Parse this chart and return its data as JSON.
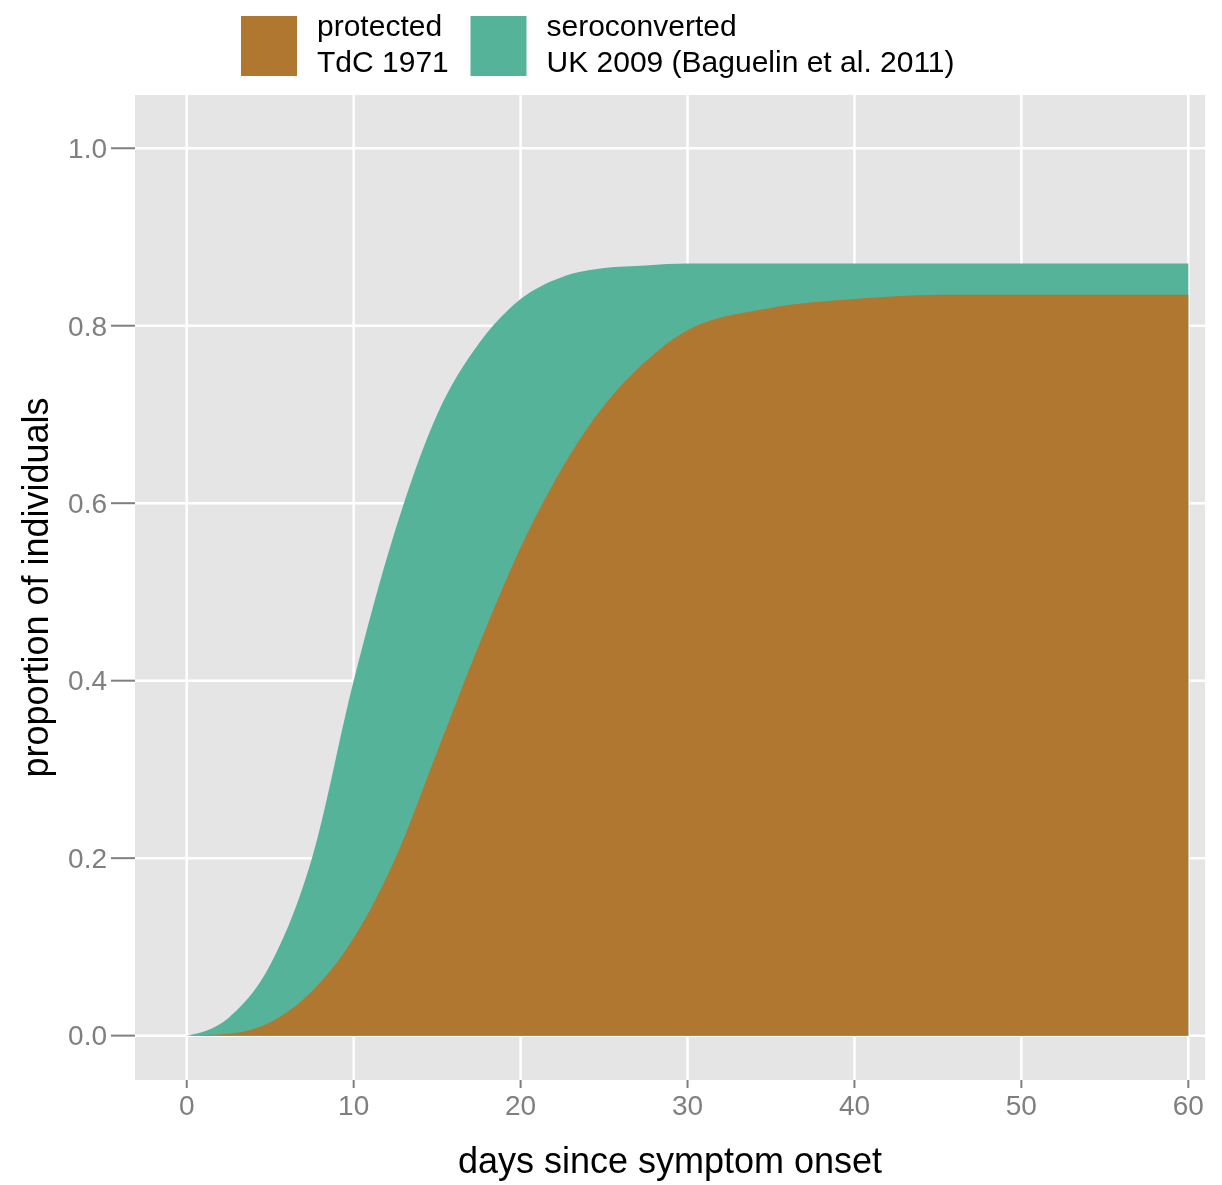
{
  "chart_data": {
    "type": "area",
    "xlabel": "days since symptom onset",
    "ylabel": "proportion of individuals",
    "x": [
      0,
      2.5,
      5,
      7.5,
      10,
      12.5,
      15,
      17.5,
      20,
      22.5,
      25,
      27.5,
      30,
      35,
      40,
      45,
      50,
      55,
      60
    ],
    "series": [
      {
        "name": "protected\nTdC 1971",
        "color": "#b07731",
        "values": [
          0,
          0.002,
          0.015,
          0.05,
          0.11,
          0.2,
          0.32,
          0.44,
          0.55,
          0.64,
          0.71,
          0.76,
          0.795,
          0.82,
          0.83,
          0.835,
          0.835,
          0.835,
          0.835
        ]
      },
      {
        "name": "seroconverted\nUK 2009 (Baguelin et al. 2011)",
        "color": "#55b399",
        "values": [
          0,
          0.02,
          0.08,
          0.2,
          0.4,
          0.57,
          0.7,
          0.78,
          0.83,
          0.855,
          0.865,
          0.868,
          0.87,
          0.87,
          0.87,
          0.87,
          0.87,
          0.87,
          0.87
        ]
      }
    ],
    "xlim": [
      -3.1,
      61
    ],
    "xticks": [
      0,
      10,
      20,
      30,
      40,
      50,
      60
    ],
    "ylim": [
      -0.05,
      1.06
    ],
    "yticks": [
      {
        "value": 0,
        "label": "0.0"
      },
      {
        "value": 0.2,
        "label": "0.2"
      },
      {
        "value": 0.4,
        "label": "0.4"
      },
      {
        "value": 0.6,
        "label": "0.6"
      },
      {
        "value": 0.8,
        "label": "0.8"
      },
      {
        "value": 1,
        "label": "1.0"
      }
    ],
    "grid": true,
    "legend": "top"
  }
}
